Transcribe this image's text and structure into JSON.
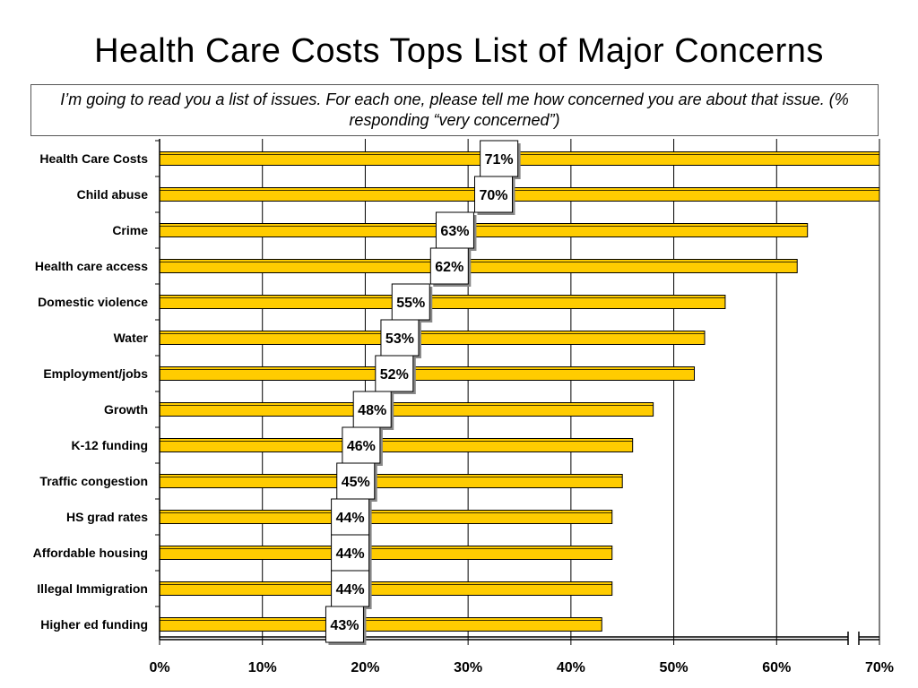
{
  "title": "Health Care Costs Tops List of Major Concerns",
  "subtitle": "I’m going to read you a list of issues.  For each one, please tell me how concerned you are about that issue. (% responding “very concerned”)",
  "chart_data": {
    "type": "bar",
    "orientation": "horizontal",
    "categories": [
      "Health Care Costs",
      "Child abuse",
      "Crime",
      "Health care access",
      "Domestic violence",
      "Water",
      "Employment/jobs",
      "Growth",
      "K-12 funding",
      "Traffic congestion",
      "HS grad rates",
      "Affordable housing",
      "Illegal Immigration",
      "Higher ed funding"
    ],
    "values": [
      71,
      70,
      63,
      62,
      55,
      53,
      52,
      48,
      46,
      45,
      44,
      44,
      44,
      43
    ],
    "labels": [
      "71%",
      "70%",
      "63%",
      "62%",
      "55%",
      "53%",
      "52%",
      "48%",
      "46%",
      "45%",
      "44%",
      "44%",
      "44%",
      "43%"
    ],
    "xlim": [
      0,
      70
    ],
    "x_ticks": [
      "0%",
      "10%",
      "20%",
      "30%",
      "40%",
      "50%",
      "60%",
      "70%"
    ],
    "axis_break": true,
    "grid": true,
    "bar_color": "#FFCC00"
  }
}
